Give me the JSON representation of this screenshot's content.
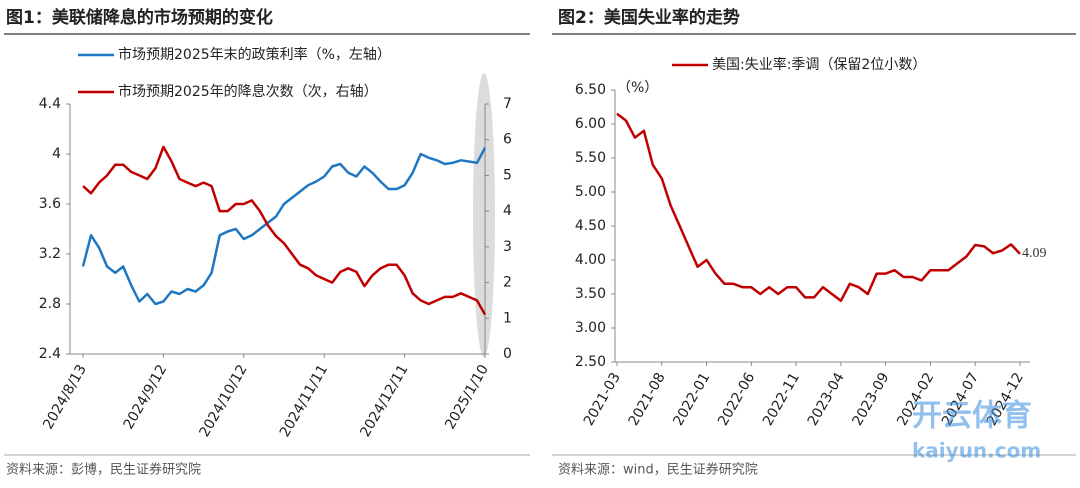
{
  "chart_data": [
    {
      "type": "line",
      "title": "图1：美联储降息的市场预期的变化",
      "source": "资料来源：彭博，民生证券研究院",
      "categories": [
        "2024/8/13",
        null,
        null,
        null,
        null,
        null,
        null,
        null,
        null,
        null,
        "2024/9/12",
        null,
        null,
        null,
        null,
        null,
        null,
        null,
        null,
        null,
        "2024/10/12",
        null,
        null,
        null,
        null,
        null,
        null,
        null,
        null,
        null,
        "2024/11/11",
        null,
        null,
        null,
        null,
        null,
        null,
        null,
        null,
        null,
        "2024/12/11",
        null,
        null,
        null,
        null,
        null,
        null,
        null,
        null,
        null,
        "2025/1/10"
      ],
      "series": [
        {
          "name": "市场预期2025年末的政策利率（%，左轴）",
          "color": "#1f77c4",
          "values": [
            3.1,
            3.35,
            3.25,
            3.1,
            3.05,
            3.1,
            2.95,
            2.82,
            2.88,
            2.8,
            2.82,
            2.9,
            2.88,
            2.92,
            2.9,
            2.95,
            3.05,
            3.35,
            3.38,
            3.4,
            3.32,
            3.35,
            3.4,
            3.45,
            3.5,
            3.6,
            3.65,
            3.7,
            3.75,
            3.78,
            3.82,
            3.9,
            3.92,
            3.85,
            3.82,
            3.9,
            3.85,
            3.78,
            3.72,
            3.72,
            3.75,
            3.85,
            4.0,
            3.97,
            3.95,
            3.92,
            3.93,
            3.95,
            3.94,
            3.93,
            4.05
          ]
        },
        {
          "name": "市场预期2025年的降息次数（次，右轴）",
          "color": "#c00000",
          "axis": "y2",
          "values": [
            4.7,
            4.5,
            4.8,
            5.0,
            5.3,
            5.3,
            5.1,
            5.0,
            4.9,
            5.2,
            5.8,
            5.4,
            4.9,
            4.8,
            4.7,
            4.8,
            4.7,
            4.0,
            4.0,
            4.2,
            4.2,
            4.3,
            4.0,
            3.6,
            3.3,
            3.1,
            2.8,
            2.5,
            2.4,
            2.2,
            2.1,
            2.0,
            2.3,
            2.4,
            2.3,
            1.9,
            2.2,
            2.4,
            2.5,
            2.5,
            2.2,
            1.7,
            1.5,
            1.4,
            1.5,
            1.6,
            1.6,
            1.7,
            1.6,
            1.5,
            1.1
          ]
        }
      ],
      "ylim": [
        2.4,
        4.4
      ],
      "yticks": [
        2.4,
        2.8,
        3.2,
        3.6,
        4,
        4.4
      ],
      "y2lim": [
        0,
        7
      ],
      "y2ticks": [
        0,
        1,
        2,
        3,
        4,
        5,
        6,
        7
      ]
    },
    {
      "type": "line",
      "title": "图2：美国失业率的走势",
      "source": "资料来源：wind，民生证券研究院",
      "y_label": "（%）",
      "categories": [
        "2021-03",
        null,
        null,
        null,
        null,
        "2021-08",
        null,
        null,
        null,
        null,
        "2022-01",
        null,
        null,
        null,
        null,
        "2022-06",
        null,
        null,
        null,
        null,
        "2022-11",
        null,
        null,
        null,
        null,
        "2023-04",
        null,
        null,
        null,
        null,
        "2023-09",
        null,
        null,
        null,
        null,
        "2024-02",
        null,
        null,
        null,
        null,
        "2024-07",
        null,
        null,
        null,
        null,
        "2024-12"
      ],
      "series": [
        {
          "name": "美国:失业率:季调（保留2位小数）",
          "color": "#c00000",
          "values": [
            6.15,
            6.05,
            5.8,
            5.9,
            5.4,
            5.2,
            4.8,
            4.5,
            4.2,
            3.9,
            4.0,
            3.8,
            3.65,
            3.65,
            3.6,
            3.6,
            3.5,
            3.6,
            3.5,
            3.6,
            3.6,
            3.45,
            3.45,
            3.6,
            3.5,
            3.4,
            3.65,
            3.6,
            3.5,
            3.8,
            3.8,
            3.85,
            3.75,
            3.75,
            3.7,
            3.85,
            3.85,
            3.85,
            3.95,
            4.05,
            4.22,
            4.2,
            4.1,
            4.14,
            4.23,
            4.09
          ]
        }
      ],
      "ylim": [
        2.5,
        6.5
      ],
      "yticks": [
        {
          "value": 2.5,
          "label": "2.50"
        },
        {
          "value": 3,
          "label": "3.00"
        },
        {
          "value": 3.5,
          "label": "3.50"
        },
        {
          "value": 4,
          "label": "4.00"
        },
        {
          "value": 4.5,
          "label": "4.50"
        },
        {
          "value": 5,
          "label": "5.00"
        },
        {
          "value": 5.5,
          "label": "5.50"
        },
        {
          "value": 6,
          "label": "6.00"
        },
        {
          "value": 6.5,
          "label": "6.50"
        }
      ]
    }
  ],
  "watermark": {
    "brand": "开云体育",
    "url": "kaiyun.com"
  }
}
